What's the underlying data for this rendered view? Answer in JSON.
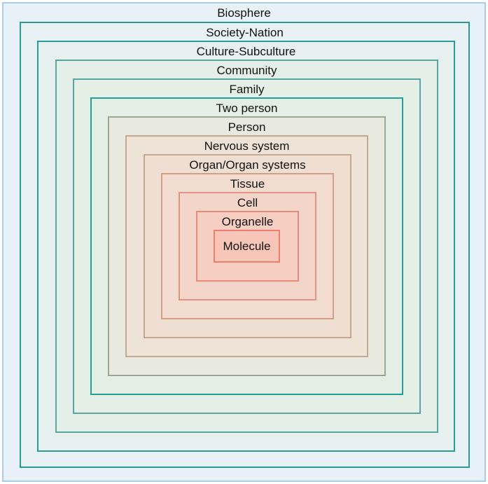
{
  "diagram": {
    "levels": [
      "Biosphere",
      "Society-Nation",
      "Culture-Subculture",
      "Community",
      "Family",
      "Two person",
      "Person",
      "Nervous system",
      "Organ/Organ systems",
      "Tissue",
      "Cell",
      "Organelle",
      "Molecule"
    ],
    "colors": {
      "outer_fill": "#e9f1f8",
      "inner_fill": "#f8c6b8",
      "outer_border": "#a9cde4",
      "teal_border": "#2a9a96",
      "inner_border": "#f07f6c"
    }
  }
}
